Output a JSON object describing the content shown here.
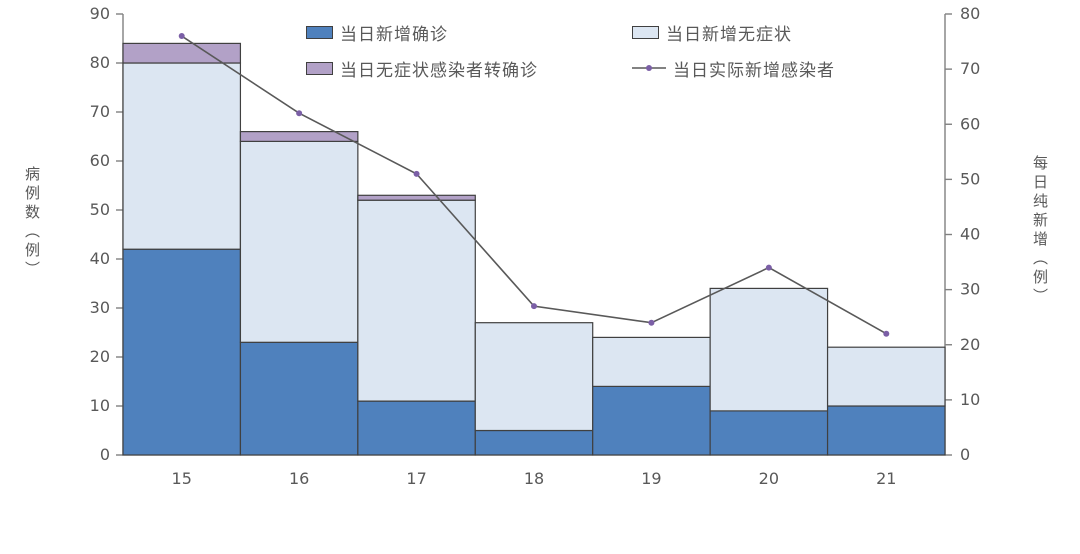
{
  "chart_data": {
    "type": "combo-stacked-bar-line",
    "categories": [
      "15",
      "16",
      "17",
      "18",
      "19",
      "20",
      "21"
    ],
    "series": [
      {
        "name": "当日新增确诊",
        "type": "bar",
        "stack": "cases",
        "color": "#4F81BD",
        "values": [
          42,
          23,
          11,
          5,
          14,
          9,
          10
        ]
      },
      {
        "name": "当日新增无症状",
        "type": "bar",
        "stack": "cases",
        "color": "#DCE6F2",
        "values": [
          38,
          41,
          41,
          22,
          10,
          25,
          12
        ]
      },
      {
        "name": "当日无症状感染者转确诊",
        "type": "bar",
        "stack": "cases",
        "color": "#B2A1C7",
        "values": [
          4,
          2,
          1,
          0,
          0,
          0,
          0
        ]
      },
      {
        "name": "当日实际新增感染者",
        "type": "line",
        "axis": "right",
        "color": "#595959",
        "marker_color": "#7B5FA6",
        "values": [
          76,
          62,
          51,
          27,
          24,
          34,
          22
        ]
      }
    ],
    "stack_totals": [
      84,
      66,
      53,
      27,
      24,
      34,
      22
    ],
    "left_axis": {
      "title": "病例数（例）",
      "min": 0,
      "max": 90,
      "step": 10,
      "ticks": [
        0,
        10,
        20,
        30,
        40,
        50,
        60,
        70,
        80,
        90
      ]
    },
    "right_axis": {
      "title": "每日纯新增（例）",
      "min": 0,
      "max": 80,
      "step": 10,
      "ticks": [
        0,
        10,
        20,
        30,
        40,
        50,
        60,
        70,
        80
      ]
    },
    "grid": false,
    "legend_position": "top",
    "bar_border_color": "#404040",
    "axis_color": "#808080",
    "text_color": "#595959"
  }
}
